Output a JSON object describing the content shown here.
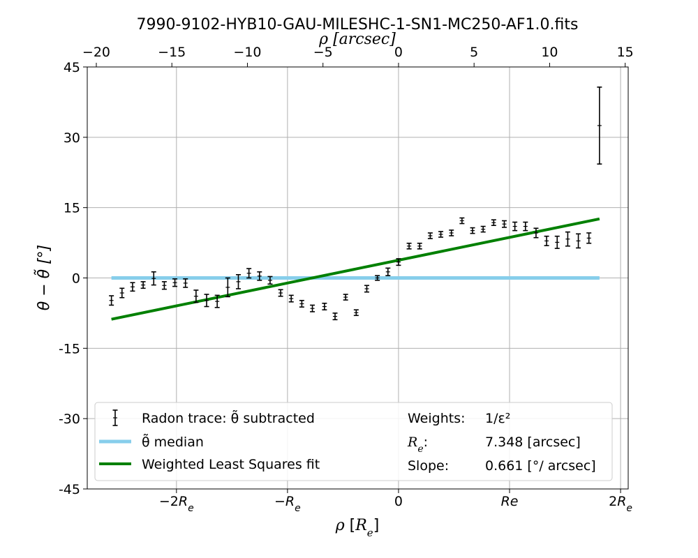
{
  "chart_data": {
    "type": "scatter",
    "title": "7990-9102-HYB10-GAU-MILESHC-1-SN1-MC250-AF1.0.fits",
    "top_xlabel": "ρ [arcsec]",
    "xlabel": "ρ [R_e]",
    "ylabel": "θ − θ̃ [°]",
    "x_unit": "arcsec",
    "r_e_arcsec": 7.348,
    "xlim_arcsec": [
      -20.6,
      15.2
    ],
    "ylim": [
      -45,
      45
    ],
    "yticks": [
      {
        "value": 45,
        "label": "45"
      },
      {
        "value": 30,
        "label": "30"
      },
      {
        "value": 15,
        "label": "15"
      },
      {
        "value": 0,
        "label": "0"
      },
      {
        "value": -15,
        "label": "-15"
      },
      {
        "value": -30,
        "label": "-30"
      },
      {
        "value": -45,
        "label": "-45"
      }
    ],
    "top_xticks": [
      {
        "value": -20,
        "label": "−20"
      },
      {
        "value": -15,
        "label": "−15"
      },
      {
        "value": -10,
        "label": "−10"
      },
      {
        "value": -5,
        "label": "−5"
      },
      {
        "value": 0,
        "label": "0"
      },
      {
        "value": 5,
        "label": "5"
      },
      {
        "value": 10,
        "label": "10"
      },
      {
        "value": 15,
        "label": "15"
      }
    ],
    "bottom_xticks": [
      {
        "value": -14.696,
        "label": "−2R",
        "sub": "e"
      },
      {
        "value": -7.348,
        "label": "−R",
        "sub": "e"
      },
      {
        "value": 0,
        "label": "0",
        "sub": ""
      },
      {
        "value": 7.348,
        "label": "Re",
        "sub": ""
      },
      {
        "value": 14.696,
        "label": "2R",
        "sub": "e"
      }
    ],
    "grid": true,
    "series": [
      {
        "name": "Radon trace: θ̃ subtracted",
        "kind": "errorbar",
        "color": "#000000",
        "points": [
          {
            "x": -19.0,
            "y": -4.8,
            "err": 1.0
          },
          {
            "x": -18.3,
            "y": -3.2,
            "err": 1.0
          },
          {
            "x": -17.6,
            "y": -1.9,
            "err": 0.9
          },
          {
            "x": -16.9,
            "y": -1.5,
            "err": 0.7
          },
          {
            "x": -16.2,
            "y": -0.1,
            "err": 1.4
          },
          {
            "x": -15.5,
            "y": -1.6,
            "err": 0.8
          },
          {
            "x": -14.8,
            "y": -1.0,
            "err": 0.8
          },
          {
            "x": -14.1,
            "y": -1.1,
            "err": 0.9
          },
          {
            "x": -13.4,
            "y": -3.9,
            "err": 1.3
          },
          {
            "x": -12.7,
            "y": -4.8,
            "err": 1.3
          },
          {
            "x": -12.0,
            "y": -5.0,
            "err": 1.3
          },
          {
            "x": -11.3,
            "y": -2.0,
            "err": 2.0
          },
          {
            "x": -10.6,
            "y": -0.8,
            "err": 1.5
          },
          {
            "x": -9.9,
            "y": 1.0,
            "err": 1.0
          },
          {
            "x": -9.2,
            "y": 0.4,
            "err": 0.9
          },
          {
            "x": -8.5,
            "y": -0.5,
            "err": 0.8
          },
          {
            "x": -7.8,
            "y": -3.2,
            "err": 0.7
          },
          {
            "x": -7.1,
            "y": -4.4,
            "err": 0.7
          },
          {
            "x": -6.4,
            "y": -5.5,
            "err": 0.7
          },
          {
            "x": -5.7,
            "y": -6.5,
            "err": 0.7
          },
          {
            "x": -4.9,
            "y": -6.1,
            "err": 0.7
          },
          {
            "x": -4.2,
            "y": -8.2,
            "err": 0.7
          },
          {
            "x": -3.5,
            "y": -4.1,
            "err": 0.6
          },
          {
            "x": -2.8,
            "y": -7.4,
            "err": 0.6
          },
          {
            "x": -2.1,
            "y": -2.3,
            "err": 0.7
          },
          {
            "x": -1.4,
            "y": 0.0,
            "err": 0.5
          },
          {
            "x": -0.7,
            "y": 1.3,
            "err": 0.8
          },
          {
            "x": 0.0,
            "y": 3.4,
            "err": 0.7
          },
          {
            "x": 0.7,
            "y": 6.8,
            "err": 0.6
          },
          {
            "x": 1.4,
            "y": 6.8,
            "err": 0.6
          },
          {
            "x": 2.1,
            "y": 9.0,
            "err": 0.6
          },
          {
            "x": 2.8,
            "y": 9.3,
            "err": 0.6
          },
          {
            "x": 3.5,
            "y": 9.6,
            "err": 0.6
          },
          {
            "x": 4.2,
            "y": 12.2,
            "err": 0.6
          },
          {
            "x": 4.9,
            "y": 10.1,
            "err": 0.6
          },
          {
            "x": 5.6,
            "y": 10.4,
            "err": 0.6
          },
          {
            "x": 6.3,
            "y": 11.8,
            "err": 0.6
          },
          {
            "x": 7.0,
            "y": 11.5,
            "err": 0.7
          },
          {
            "x": 7.7,
            "y": 11.0,
            "err": 0.9
          },
          {
            "x": 8.4,
            "y": 11.0,
            "err": 0.9
          },
          {
            "x": 9.1,
            "y": 9.6,
            "err": 1.0
          },
          {
            "x": 9.8,
            "y": 7.9,
            "err": 1.0
          },
          {
            "x": 10.5,
            "y": 7.6,
            "err": 1.3
          },
          {
            "x": 11.2,
            "y": 8.3,
            "err": 1.5
          },
          {
            "x": 11.9,
            "y": 7.9,
            "err": 1.5
          },
          {
            "x": 12.6,
            "y": 8.5,
            "err": 1.1
          },
          {
            "x": 13.3,
            "y": 32.5,
            "err": 8.2
          }
        ]
      },
      {
        "name": "θ̃ median",
        "kind": "line",
        "color": "#87ceeb",
        "x": [
          -19.0,
          13.3
        ],
        "y": [
          0,
          0
        ]
      },
      {
        "name": "Weighted Least Squares fit",
        "kind": "line",
        "color": "#008000",
        "x": [
          -19.0,
          13.3
        ],
        "y": [
          -8.8,
          12.6
        ]
      }
    ],
    "legend": {
      "placement": "bottom",
      "entries": [
        {
          "kind": "errorbar",
          "color": "#000000",
          "label": "Radon trace: θ̃ subtracted"
        },
        {
          "kind": "line",
          "color": "#87ceeb",
          "label": "θ̃ median"
        },
        {
          "kind": "line",
          "color": "#008000",
          "label": "Weighted Least Squares fit"
        }
      ],
      "info": [
        {
          "key": "Weights:",
          "value": "1/ε²"
        },
        {
          "key": "R_e:",
          "value": "7.348 [arcsec]"
        },
        {
          "key": "Slope:",
          "value": "0.661 [°/ arcsec]"
        }
      ]
    }
  }
}
